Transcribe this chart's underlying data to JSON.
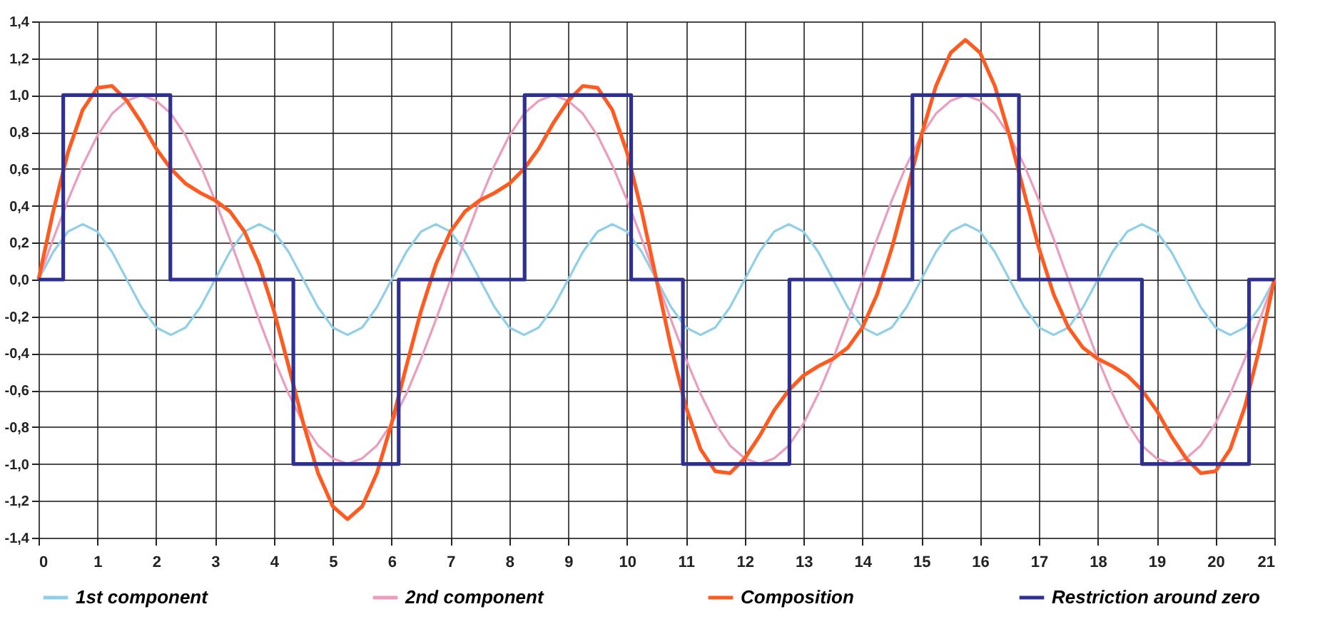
{
  "chart_data": {
    "type": "line",
    "xlim": [
      0,
      21
    ],
    "xticks": [
      0,
      1,
      2,
      3,
      4,
      5,
      6,
      7,
      8,
      9,
      10,
      11,
      12,
      13,
      14,
      15,
      16,
      17,
      18,
      19,
      20,
      21
    ],
    "ylim": [
      -1.4,
      1.4
    ],
    "yticks": [
      {
        "value": -1.4,
        "label": "-1,4"
      },
      {
        "value": -1.2,
        "label": "-1,2"
      },
      {
        "value": -1.0,
        "label": "-1,0"
      },
      {
        "value": -0.8,
        "label": "-0,8"
      },
      {
        "value": -0.6,
        "label": "-0,6"
      },
      {
        "value": -0.4,
        "label": "-0,4"
      },
      {
        "value": -0.2,
        "label": "-0,2"
      },
      {
        "value": 0,
        "label": "0,0"
      },
      {
        "value": 0.2,
        "label": "0,2"
      },
      {
        "value": 0.4,
        "label": "0,4"
      },
      {
        "value": 0.6,
        "label": "0,6"
      },
      {
        "value": 0.8,
        "label": "0,8"
      },
      {
        "value": 1.0,
        "label": "1,0"
      },
      {
        "value": 1.2,
        "label": "1,2"
      },
      {
        "value": 1.4,
        "label": "1,4"
      }
    ],
    "grid": true,
    "legend": "bottom",
    "marker": "none",
    "line_style": "solid",
    "x": [
      0,
      0.25,
      0.5,
      0.75,
      1,
      1.25,
      1.5,
      1.75,
      2,
      2.25,
      2.5,
      2.75,
      3,
      3.25,
      3.5,
      3.75,
      4,
      4.25,
      4.5,
      4.75,
      5,
      5.25,
      5.5,
      5.75,
      6,
      6.25,
      6.5,
      6.75,
      7,
      7.25,
      7.5,
      7.75,
      8,
      8.25,
      8.5,
      8.75,
      9,
      9.25,
      9.5,
      9.75,
      10,
      10.25,
      10.5,
      10.75,
      11,
      11.25,
      11.5,
      11.75,
      12,
      12.25,
      12.5,
      12.75,
      13,
      13.25,
      13.5,
      13.75,
      14,
      14.25,
      14.5,
      14.75,
      15,
      15.25,
      15.5,
      15.75,
      16,
      16.25,
      16.5,
      16.75,
      17,
      17.25,
      17.5,
      17.75,
      18,
      18.25,
      18.5,
      18.75,
      19,
      19.25,
      19.5,
      19.75,
      20,
      20.25,
      20.5,
      20.75,
      21
    ],
    "series": [
      {
        "name": "1st component",
        "color": "#8fcfea",
        "values": [
          0,
          0.15,
          0.26,
          0.3,
          0.26,
          0.15,
          0,
          -0.15,
          -0.26,
          -0.3,
          -0.26,
          -0.15,
          0,
          0.15,
          0.26,
          0.3,
          0.26,
          0.15,
          0,
          -0.15,
          -0.26,
          -0.3,
          -0.26,
          -0.15,
          0,
          0.15,
          0.26,
          0.3,
          0.26,
          0.15,
          0,
          -0.15,
          -0.26,
          -0.3,
          -0.26,
          -0.15,
          0,
          0.15,
          0.26,
          0.3,
          0.26,
          0.15,
          0,
          -0.15,
          -0.26,
          -0.3,
          -0.26,
          -0.15,
          0,
          0.15,
          0.26,
          0.3,
          0.26,
          0.15,
          0,
          -0.15,
          -0.26,
          -0.3,
          -0.26,
          -0.15,
          0,
          0.15,
          0.26,
          0.3,
          0.26,
          0.15,
          0,
          -0.15,
          -0.26,
          -0.3,
          -0.26,
          -0.15,
          0,
          0.15,
          0.26,
          0.3,
          0.26,
          0.15,
          0,
          -0.15,
          -0.26,
          -0.3,
          -0.26,
          -0.15,
          0
        ]
      },
      {
        "name": "2nd component",
        "color": "#ec9cbc",
        "values": [
          0,
          0.22,
          0.43,
          0.62,
          0.78,
          0.9,
          0.97,
          1,
          0.97,
          0.9,
          0.78,
          0.62,
          0.43,
          0.22,
          0,
          -0.22,
          -0.43,
          -0.62,
          -0.78,
          -0.9,
          -0.97,
          -1,
          -0.97,
          -0.9,
          -0.78,
          -0.62,
          -0.43,
          -0.22,
          0,
          0.22,
          0.43,
          0.62,
          0.78,
          0.9,
          0.97,
          1,
          0.97,
          0.9,
          0.78,
          0.62,
          0.43,
          0.22,
          0,
          -0.22,
          -0.43,
          -0.62,
          -0.78,
          -0.9,
          -0.97,
          -1,
          -0.97,
          -0.9,
          -0.78,
          -0.62,
          -0.43,
          -0.22,
          0,
          0.22,
          0.43,
          0.62,
          0.78,
          0.9,
          0.97,
          1,
          0.97,
          0.9,
          0.78,
          0.62,
          0.43,
          0.22,
          0,
          -0.22,
          -0.43,
          -0.62,
          -0.78,
          -0.9,
          -0.97,
          -1,
          -0.97,
          -0.9,
          -0.78,
          -0.62,
          -0.43,
          -0.22,
          0
        ]
      },
      {
        "name": "Composition",
        "color": "#ff5a1f",
        "values": [
          0,
          0.37,
          0.69,
          0.92,
          1.04,
          1.05,
          0.97,
          0.85,
          0.71,
          0.6,
          0.52,
          0.47,
          0.43,
          0.37,
          0.26,
          0.08,
          -0.17,
          -0.47,
          -0.78,
          -1.05,
          -1.23,
          -1.3,
          -1.23,
          -1.05,
          -0.78,
          -0.47,
          -0.17,
          0.08,
          0.26,
          0.37,
          0.43,
          0.47,
          0.52,
          0.6,
          0.71,
          0.85,
          0.97,
          1.05,
          1.04,
          0.92,
          0.69,
          0.37,
          0,
          -0.37,
          -0.69,
          -0.92,
          -1.04,
          -1.05,
          -0.97,
          -0.85,
          -0.71,
          -0.6,
          -0.52,
          -0.47,
          -0.43,
          -0.37,
          -0.26,
          -0.08,
          0.17,
          0.47,
          0.78,
          1.05,
          1.23,
          1.3,
          1.23,
          1.05,
          0.78,
          0.47,
          0.17,
          -0.08,
          -0.26,
          -0.37,
          -0.43,
          -0.47,
          -0.52,
          -0.6,
          -0.71,
          -0.85,
          -0.97,
          -1.05,
          -1.04,
          -0.92,
          -0.69,
          -0.37,
          0
        ]
      },
      {
        "name": "Restriction around zero",
        "color": "#2e3192",
        "type": "step",
        "x": [
          0,
          0.42,
          2.24,
          4.33,
          6.12,
          8.26,
          10.07,
          10.95,
          12.76,
          14.85,
          16.66,
          18.75,
          20.57,
          21
        ],
        "values": [
          0,
          1,
          0,
          -1,
          0,
          1,
          0,
          -1,
          0,
          1,
          0,
          -1,
          0,
          0
        ]
      }
    ]
  }
}
